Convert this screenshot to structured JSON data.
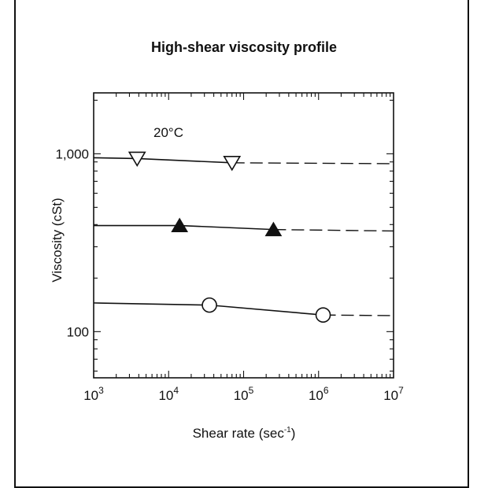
{
  "chart_data": {
    "type": "line",
    "title": "High-shear viscosity profile",
    "annotation": "20°C",
    "xlabel_main": "Shear rate (sec",
    "xlabel_sup": "-1",
    "xlabel_close": ")",
    "ylabel": "Viscosity (cSt)",
    "x_scale": "log",
    "y_scale": "log",
    "xlim": [
      1000,
      10000000
    ],
    "ylim": [
      55,
      2200
    ],
    "x_ticks": [
      {
        "value": 1000,
        "base": "10",
        "exp": "3"
      },
      {
        "value": 10000,
        "base": "10",
        "exp": "4"
      },
      {
        "value": 100000,
        "base": "10",
        "exp": "5"
      },
      {
        "value": 1000000,
        "base": "10",
        "exp": "6"
      },
      {
        "value": 10000000,
        "base": "10",
        "exp": "7"
      }
    ],
    "y_ticks": [
      {
        "value": 100,
        "label": "100"
      },
      {
        "value": 1000,
        "label": "1,000"
      }
    ],
    "colors": {
      "ink": "#111111"
    },
    "series": [
      {
        "marker": "triangle-down-open",
        "points": [
          [
            1000,
            950
          ],
          [
            3800,
            940
          ],
          [
            70000,
            890
          ]
        ],
        "marker_points": [
          [
            3800,
            940
          ],
          [
            70000,
            890
          ]
        ],
        "extrapolation": [
          [
            70000,
            890
          ],
          [
            10000000,
            880
          ]
        ]
      },
      {
        "marker": "triangle-up-filled",
        "points": [
          [
            1000,
            395
          ],
          [
            14000,
            395
          ],
          [
            250000,
            375
          ]
        ],
        "marker_points": [
          [
            14000,
            395
          ],
          [
            250000,
            375
          ]
        ],
        "extrapolation": [
          [
            250000,
            375
          ],
          [
            10000000,
            368
          ]
        ]
      },
      {
        "marker": "circle-open",
        "points": [
          [
            1000,
            145
          ],
          [
            35000,
            141
          ],
          [
            1150000,
            124
          ]
        ],
        "marker_points": [
          [
            35000,
            141
          ],
          [
            1150000,
            124
          ]
        ],
        "extrapolation": [
          [
            1150000,
            124
          ],
          [
            10000000,
            123
          ]
        ]
      }
    ]
  }
}
